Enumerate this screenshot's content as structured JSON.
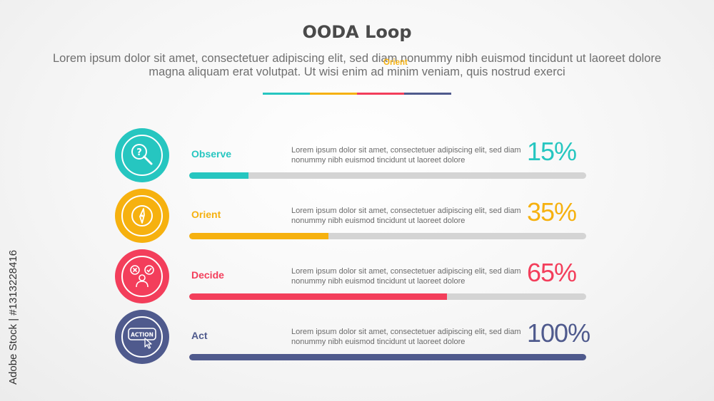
{
  "title": "OODA Loop",
  "subtitle": "Lorem ipsum dolor sit amet, consectetuer adipiscing elit, sed diam nonummy nibh euismod tincidunt ut laoreet dolore magna aliquam erat volutpat. Ut wisi enim ad minim veniam, quis nostrud exerci",
  "overlay_label": "Orient",
  "colors": {
    "teal": "#26c6c0",
    "yellow": "#f6b10f",
    "red": "#f33e5b",
    "navy": "#4f5a8d",
    "track": "#d4d4d4"
  },
  "watermark": "Adobe Stock | #1313228416",
  "chart_data": {
    "type": "bar",
    "categories": [
      "Observe",
      "Orient",
      "Decide",
      "Act"
    ],
    "values": [
      15,
      35,
      65,
      100
    ],
    "value_labels": [
      "15%",
      "35%",
      "65%",
      "100%"
    ],
    "ylim": [
      0,
      100
    ]
  },
  "items": [
    {
      "label": "Observe",
      "icon": "magnifier-question-icon",
      "color": "#26c6c0",
      "ring": "#5fd7d2",
      "desc": "Lorem ipsum dolor sit amet, consectetuer adipiscing elit, sed diam nonummy nibh euismod tincidunt ut laoreet dolore",
      "value": 15,
      "value_label": "15%"
    },
    {
      "label": "Orient",
      "icon": "compass-icon",
      "color": "#f6b10f",
      "ring": "#fbcc4e",
      "desc": "Lorem ipsum dolor sit amet, consectetuer adipiscing elit, sed diam nonummy nibh euismod tincidunt ut laoreet dolore",
      "value": 35,
      "value_label": "35%"
    },
    {
      "label": "Decide",
      "icon": "decision-person-icon",
      "color": "#f33e5b",
      "ring": "#f76e85",
      "desc": "Lorem ipsum dolor sit amet, consectetuer adipiscing elit, sed diam nonummy nibh euismod tincidunt ut laoreet dolore",
      "value": 65,
      "value_label": "65%"
    },
    {
      "label": "Act",
      "icon": "action-button-icon",
      "color": "#4f5a8d",
      "ring": "#7079a6",
      "desc": "Lorem ipsum dolor sit amet, consectetuer adipiscing elit, sed diam nonummy nibh euismod tincidunt ut laoreet dolore",
      "value": 100,
      "value_label": "100%"
    }
  ],
  "action_icon_text": "ACTION"
}
